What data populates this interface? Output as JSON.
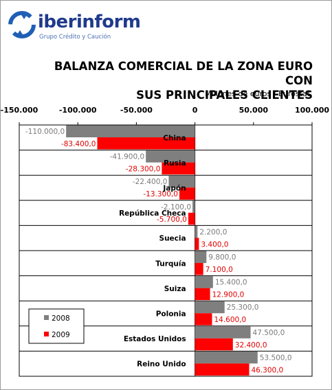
{
  "header": {
    "brand_name": "iberinform",
    "brand_subtitle": "Grupo Crédito y Caución"
  },
  "colors": {
    "series_2008": "#7f7f7f",
    "series_2009": "#ff0000",
    "brand": "#1f3a8c"
  },
  "chart_data": {
    "type": "bar",
    "orientation": "horizontal",
    "title_lines": [
      "BALANZA COMERCIAL DE LA ZONA EURO CON",
      "SUS PRINCIPALES CLIENTES"
    ],
    "subtitle": "Millones de euros / Eurostat",
    "xlim": [
      -150000,
      100000
    ],
    "x_ticks": [
      -150000,
      -100000,
      -50000,
      0,
      50000,
      100000
    ],
    "x_tick_labels": [
      "-150.000",
      "-100.000",
      "-50.000",
      "0",
      "50.000",
      "100.000"
    ],
    "grid": true,
    "legend_position": "bottom-left",
    "categories": [
      "China",
      "Rusia",
      "Japón",
      "República Checa",
      "Suecia",
      "Turquía",
      "Suiza",
      "Polonia",
      "Estados Unidos",
      "Reino Unido"
    ],
    "series": [
      {
        "name": "2008",
        "values": [
          -110000,
          -41900,
          -22400,
          -2100,
          2200,
          9800,
          15400,
          25300,
          47500,
          53500
        ],
        "labels": [
          "-110.000,0",
          "-41.900,0",
          "-22.400,0",
          "-2.100,0",
          "2.200,0",
          "9.800,0",
          "15.400,0",
          "25.300,0",
          "47.500,0",
          "53.500,0"
        ]
      },
      {
        "name": "2009",
        "values": [
          -83400,
          -28300,
          -13300,
          -5700,
          3400,
          7100,
          12900,
          14600,
          32400,
          46300
        ],
        "labels": [
          "-83.400,0",
          "-28.300,0",
          "-13.300,0",
          "-5.700,0",
          "3.400,0",
          "7.100,0",
          "12.900,0",
          "14.600,0",
          "32.400,0",
          "46.300,0"
        ]
      }
    ]
  }
}
